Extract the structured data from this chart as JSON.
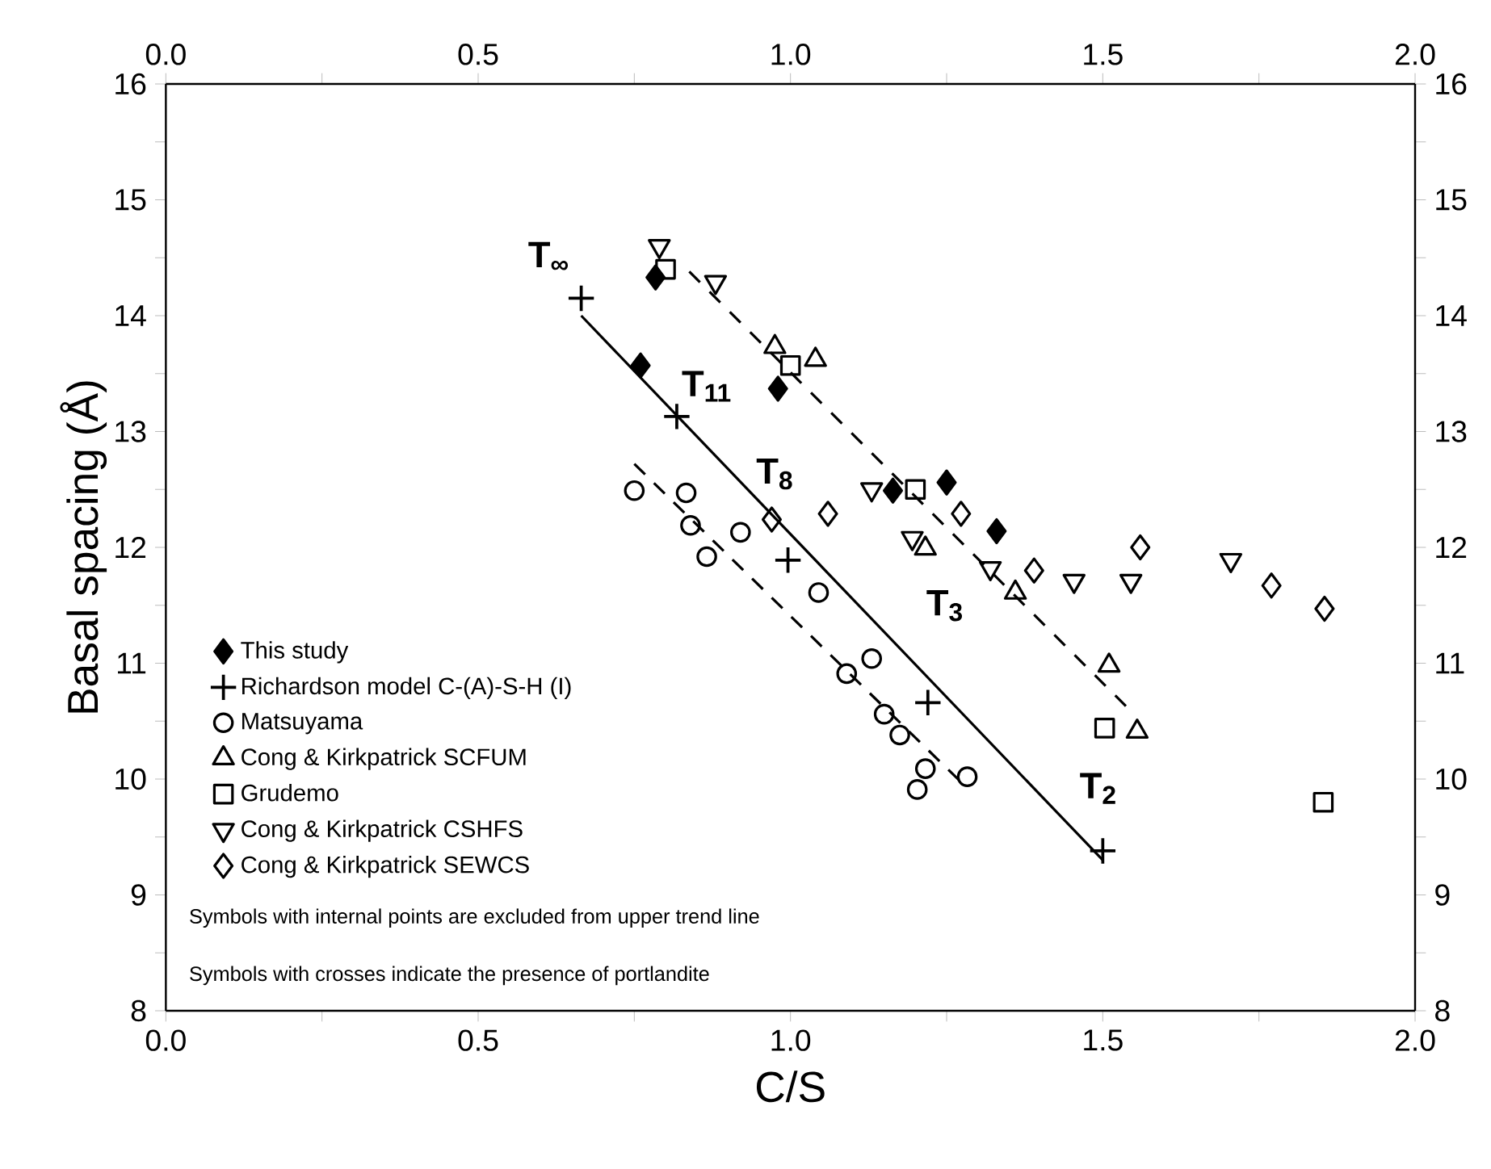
{
  "chart_data": {
    "type": "scatter",
    "xlabel": "C/S",
    "ylabel": "Basal spacing (Å)",
    "xlim": [
      0,
      2
    ],
    "ylim": [
      8,
      16
    ],
    "x2lim": [
      0,
      2
    ],
    "y2lim": [
      8,
      16
    ],
    "xticks": [
      {
        "value": 0,
        "label": "0.0"
      },
      {
        "value": 0.25,
        "label": null
      },
      {
        "value": 0.5,
        "label": "0.5"
      },
      {
        "value": 0.75,
        "label": null
      },
      {
        "value": 1,
        "label": "1.0"
      },
      {
        "value": 1.25,
        "label": null
      },
      {
        "value": 1.5,
        "label": "1.5"
      },
      {
        "value": 1.75,
        "label": null
      },
      {
        "value": 2,
        "label": "2.0"
      }
    ],
    "x2ticks": [
      {
        "value": 0,
        "label": "0.0"
      },
      {
        "value": 0.25,
        "label": null
      },
      {
        "value": 0.5,
        "label": "0.5"
      },
      {
        "value": 0.75,
        "label": null
      },
      {
        "value": 1,
        "label": "1.0"
      },
      {
        "value": 1.25,
        "label": null
      },
      {
        "value": 1.5,
        "label": "1.5"
      },
      {
        "value": 1.75,
        "label": null
      },
      {
        "value": 2,
        "label": "2.0"
      }
    ],
    "yticks": [
      8,
      {
        "value": 8.5,
        "label": null
      },
      9,
      {
        "value": 9.5,
        "label": null
      },
      10,
      {
        "value": 10.5,
        "label": null
      },
      11,
      {
        "value": 11.5,
        "label": null
      },
      12,
      {
        "value": 12.5,
        "label": null
      },
      13,
      {
        "value": 13.5,
        "label": null
      },
      14,
      {
        "value": 14.5,
        "label": null
      },
      15,
      {
        "value": 15.5,
        "label": null
      },
      16
    ],
    "y2ticks": [
      8,
      {
        "value": 8.5,
        "label": null
      },
      9,
      {
        "value": 9.5,
        "label": null
      },
      10,
      {
        "value": 10.5,
        "label": null
      },
      11,
      {
        "value": 11.5,
        "label": null
      },
      12,
      {
        "value": 12.5,
        "label": null
      },
      13,
      {
        "value": 13.5,
        "label": null
      },
      14,
      {
        "value": 14.5,
        "label": null
      },
      15,
      {
        "value": 15.5,
        "label": null
      },
      16
    ],
    "grid": false,
    "legend": "left",
    "marker": "diamond",
    "series": [
      {
        "name": "This study",
        "color": "#000000",
        "x": [
          0.784,
          0.76,
          0.98,
          1.164,
          1.25,
          1.33
        ],
        "values": [
          14.33,
          13.57,
          13.37,
          12.49,
          12.56,
          12.14
        ]
      },
      {
        "name": "Richardson model C-(A)-S-H (I)",
        "color": "#000000",
        "marker": "cross",
        "x": [
          0.665,
          0.818,
          0.996,
          1.22,
          1.5
        ],
        "values": [
          14.15,
          13.13,
          11.89,
          10.66,
          9.38
        ]
      },
      {
        "name": "Matsuyama",
        "color": "#000000",
        "marker": "circle",
        "x": [
          0.75,
          0.833,
          0.84,
          0.866,
          0.92,
          1.045,
          1.13,
          1.09,
          1.15,
          1.175,
          1.216,
          1.203,
          1.283
        ],
        "values": [
          12.49,
          12.47,
          12.19,
          11.92,
          12.13,
          11.61,
          11.04,
          10.91,
          10.56,
          10.38,
          10.09,
          9.91,
          10.02
        ]
      },
      {
        "name": "Cong & Kirkpatrick SCFUM",
        "color": "#000000",
        "marker": "triangle",
        "x": [
          0.975,
          1.04,
          1.216,
          1.36,
          1.51,
          1.555
        ],
        "values": [
          13.73,
          13.62,
          11.99,
          11.61,
          10.98,
          10.41
        ]
      },
      {
        "name": "Grudemo",
        "color": "#000000",
        "marker": "square",
        "x": [
          0.8,
          1.0,
          1.2,
          1.503,
          1.853
        ],
        "values": [
          14.4,
          13.57,
          12.5,
          10.44,
          9.8
        ]
      },
      {
        "name": "Cong & Kirkpatrick CSHFS",
        "color": "#000000",
        "marker": "triangle down",
        "x": [
          0.79,
          0.88,
          1.13,
          1.195,
          1.32,
          1.454,
          1.545,
          1.705
        ],
        "values": [
          14.6,
          14.29,
          12.5,
          12.08,
          11.82,
          11.71,
          11.71,
          11.89
        ]
      },
      {
        "name": "Cong & Kirkpatrick SEWCS",
        "color": "#000000",
        "marker": "diamond",
        "x": [
          0.97,
          1.06,
          1.273,
          1.39,
          1.56,
          1.77,
          1.855
        ],
        "values": [
          12.24,
          12.29,
          12.29,
          11.8,
          12.0,
          11.67,
          11.47
        ]
      },
      {
        "type": "line",
        "color": "#000000",
        "line_style": "solid",
        "marker": "none",
        "x": [
          0.665,
          1.5
        ],
        "values": [
          14.0,
          9.3
        ]
      },
      {
        "type": "line",
        "color": "#000000",
        "line_style": "dashed",
        "marker": "none",
        "x": [
          0.838,
          1.537
        ],
        "values": [
          14.38,
          10.63
        ]
      },
      {
        "type": "line",
        "color": "#000000",
        "line_style": "dashed",
        "marker": "none",
        "x": [
          0.75,
          1.27
        ],
        "values": [
          12.72,
          9.99
        ]
      }
    ],
    "annotations": [
      {
        "text": "T$_{∞}$",
        "x": 0.665,
        "y": 14.15
      },
      {
        "text": "T$_{11}$",
        "x": 0.818,
        "y": 13.13
      },
      {
        "text": "T$_{8}$",
        "x": 0.996,
        "y": 11.89
      },
      {
        "text": "T$_{3}$",
        "x": 1.22,
        "y": 10.66
      },
      {
        "text": "T$_{2}$",
        "x": 1.5,
        "y": 9.38
      },
      "Symbols with internal points are excluded from upper trend line",
      "Symbols with crosses indicate the presence of portlandite"
    ]
  }
}
